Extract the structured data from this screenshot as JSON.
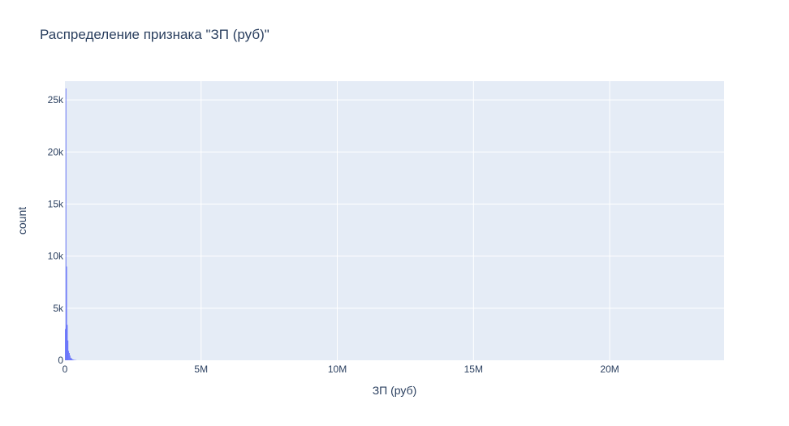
{
  "chart_data": {
    "type": "bar",
    "title": "Распределение признака \"ЗП (руб)\"",
    "xlabel": "ЗП (руб)",
    "ylabel": "count",
    "xlim": [
      0,
      24200000
    ],
    "ylim": [
      0,
      26800
    ],
    "x_ticks": [
      {
        "value": 0,
        "label": "0"
      },
      {
        "value": 5000000,
        "label": "5M"
      },
      {
        "value": 10000000,
        "label": "10M"
      },
      {
        "value": 15000000,
        "label": "15M"
      },
      {
        "value": 20000000,
        "label": "20M"
      }
    ],
    "y_ticks": [
      {
        "value": 0,
        "label": "0"
      },
      {
        "value": 5000,
        "label": "5k"
      },
      {
        "value": 10000,
        "label": "10k"
      },
      {
        "value": 15000,
        "label": "15k"
      },
      {
        "value": 20000,
        "label": "20k"
      },
      {
        "value": 25000,
        "label": "25k"
      }
    ],
    "bin_width": 25000,
    "bins": [
      {
        "x0": 0,
        "count": 3000
      },
      {
        "x0": 25000,
        "count": 26100
      },
      {
        "x0": 50000,
        "count": 9000
      },
      {
        "x0": 75000,
        "count": 3400
      },
      {
        "x0": 100000,
        "count": 1900
      },
      {
        "x0": 125000,
        "count": 900
      },
      {
        "x0": 150000,
        "count": 700
      },
      {
        "x0": 175000,
        "count": 450
      },
      {
        "x0": 200000,
        "count": 250
      },
      {
        "x0": 225000,
        "count": 200
      },
      {
        "x0": 250000,
        "count": 120
      },
      {
        "x0": 275000,
        "count": 80
      },
      {
        "x0": 300000,
        "count": 60
      },
      {
        "x0": 325000,
        "count": 40
      },
      {
        "x0": 350000,
        "count": 30
      },
      {
        "x0": 375000,
        "count": 20
      },
      {
        "x0": 400000,
        "count": 15
      }
    ],
    "bar_color": "#636efa",
    "plot_bg": "#e5ecf6",
    "grid": true
  }
}
